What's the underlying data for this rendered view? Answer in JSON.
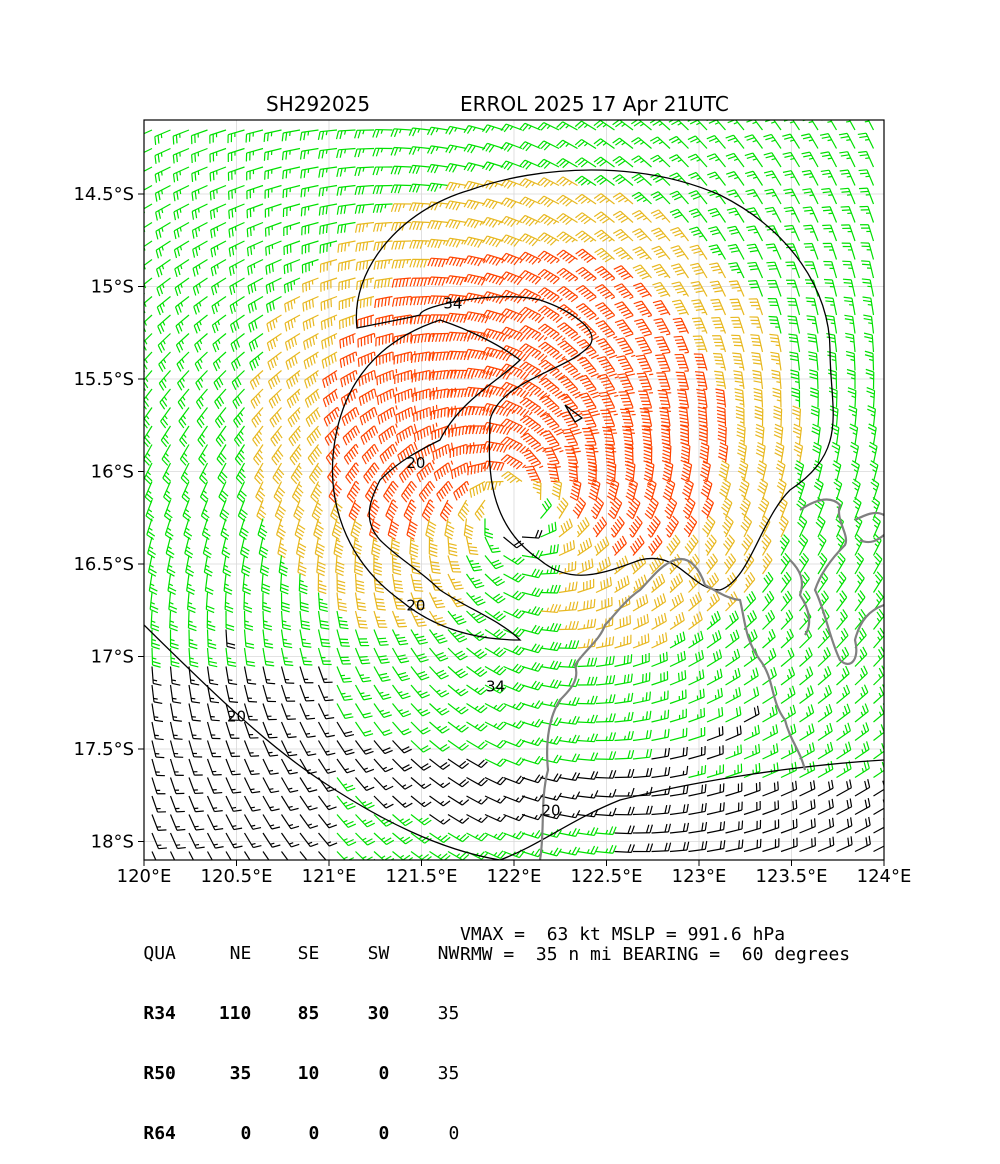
{
  "title_left": "SH292025",
  "title_right": "ERROL 2025 17 Apr 21UTC",
  "map": {
    "lon_range": [
      120.0,
      124.0
    ],
    "lat_range": [
      -18.1,
      -14.1
    ],
    "x_ticks": [
      {
        "value": 120.0,
        "label": "120°E"
      },
      {
        "value": 120.5,
        "label": "120.5°E"
      },
      {
        "value": 121.0,
        "label": "121°E"
      },
      {
        "value": 121.5,
        "label": "121.5°E"
      },
      {
        "value": 122.0,
        "label": "122°E"
      },
      {
        "value": 122.5,
        "label": "122.5°E"
      },
      {
        "value": 123.0,
        "label": "123°E"
      },
      {
        "value": 123.5,
        "label": "123.5°E"
      },
      {
        "value": 124.0,
        "label": "124°E"
      }
    ],
    "y_ticks": [
      {
        "value": -14.5,
        "label": "14.5°S"
      },
      {
        "value": -15.0,
        "label": "15°S"
      },
      {
        "value": -15.5,
        "label": "15.5°S"
      },
      {
        "value": -16.0,
        "label": "16°S"
      },
      {
        "value": -16.5,
        "label": "16.5°S"
      },
      {
        "value": -17.0,
        "label": "17°S"
      },
      {
        "value": -17.5,
        "label": "17.5°S"
      },
      {
        "value": -18.0,
        "label": "18°S"
      }
    ],
    "storm_center": {
      "lon": 122.0,
      "lat": -16.2
    },
    "contour_labels": [
      {
        "text": "34",
        "lon": 121.67,
        "lat": -15.12
      },
      {
        "text": "20",
        "lon": 121.47,
        "lat": -15.98
      },
      {
        "text": "20",
        "lon": 121.47,
        "lat": -16.75
      },
      {
        "text": "34",
        "lon": 121.9,
        "lat": -17.19
      },
      {
        "text": "20",
        "lon": 120.5,
        "lat": -17.35
      },
      {
        "text": "20",
        "lon": 122.2,
        "lat": -17.86
      }
    ],
    "colors": {
      "below_20kt": "#000000",
      "r20_34kt": "#00e000",
      "r34_50kt": "#e8b820",
      "r50_64kt": "#ff4400",
      "coastline": "#808080",
      "contour": "#000000",
      "grid": "#d8d8d8"
    }
  },
  "radii_table": {
    "header": [
      "QUA",
      "NE",
      "SE",
      "SW",
      "NW"
    ],
    "rows": [
      {
        "label": "R34",
        "values": [
          "110",
          "85",
          "30",
          "35"
        ]
      },
      {
        "label": "R50",
        "values": [
          "35",
          "10",
          "0",
          "35"
        ]
      },
      {
        "label": "R64",
        "values": [
          "0",
          "0",
          "0",
          "0"
        ]
      }
    ]
  },
  "info": {
    "line1": "VMAX =  63 kt MSLP = 991.6 hPa",
    "line2": "RMW =  35 n mi BEARING =  60 degrees"
  }
}
